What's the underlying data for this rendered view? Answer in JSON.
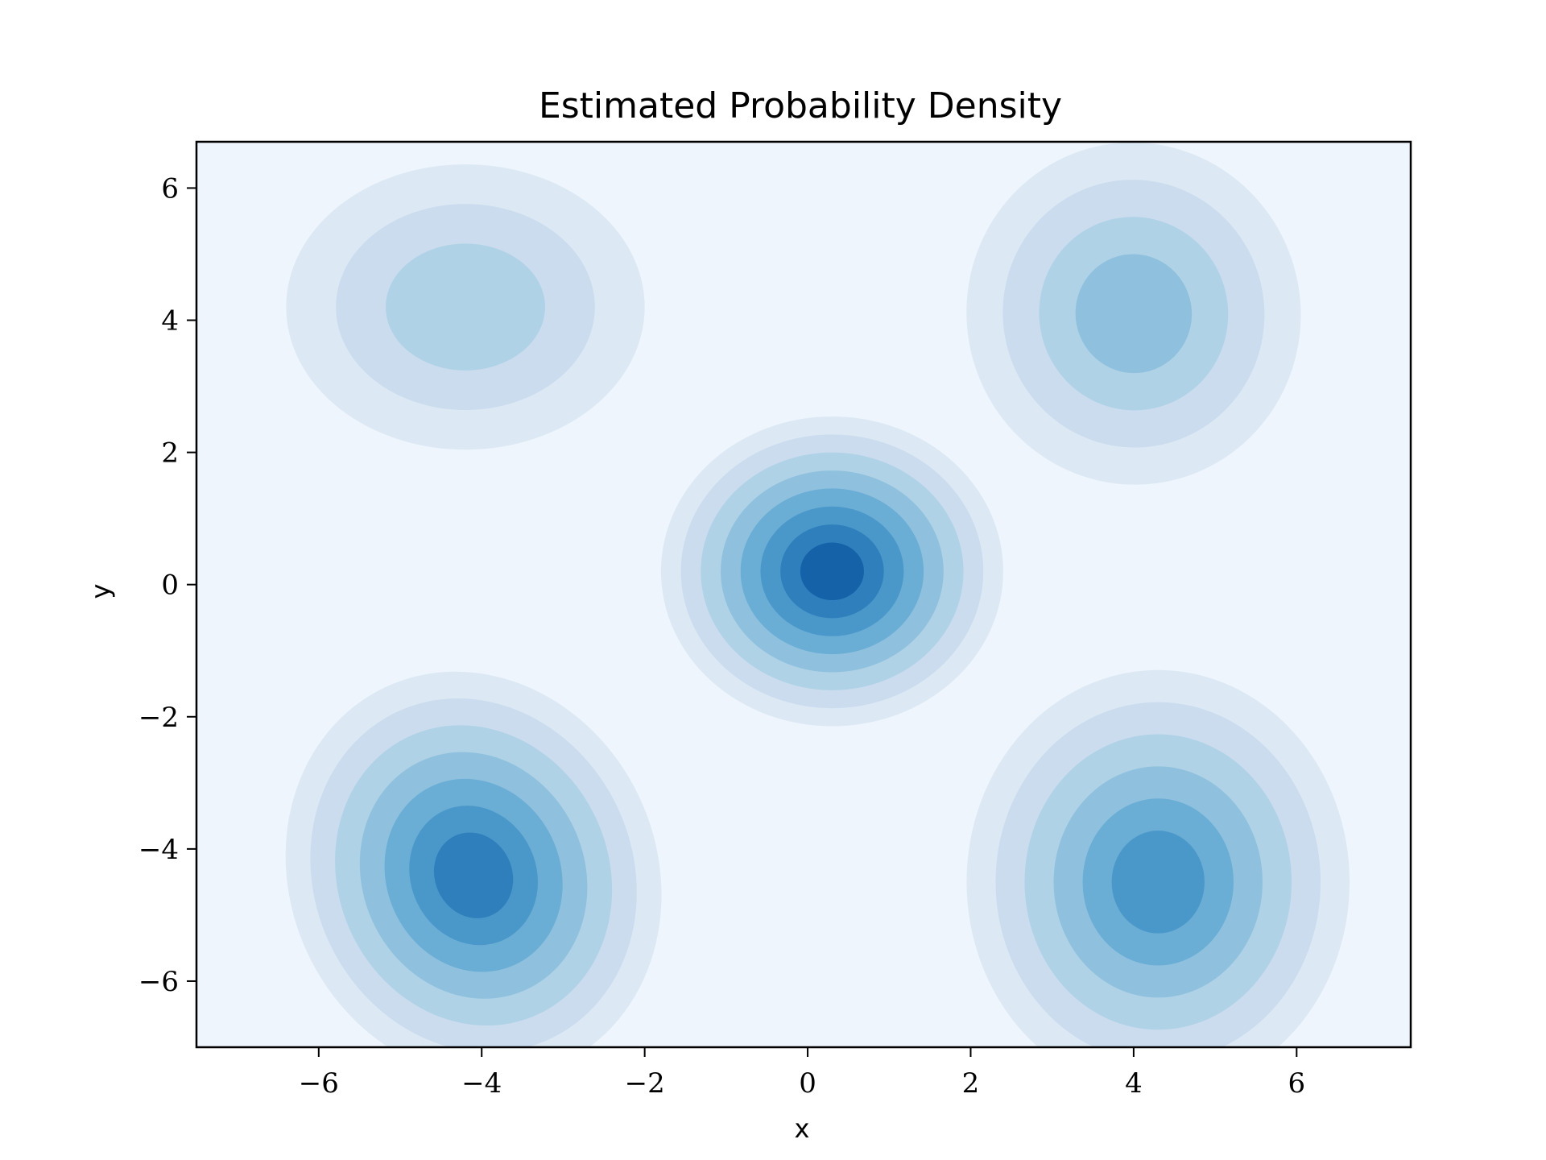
{
  "chart_data": {
    "type": "contour",
    "title": "Estimated Probability Density",
    "xlabel": "x",
    "ylabel": "y",
    "xlim": [
      -7.5,
      7.4
    ],
    "ylim": [
      -7.0,
      6.7
    ],
    "xticks": [
      -6,
      -4,
      -2,
      0,
      2,
      4,
      6
    ],
    "yticks": [
      -6,
      -4,
      -2,
      0,
      2,
      4,
      6
    ],
    "xtick_labels": [
      "−6",
      "−4",
      "−2",
      "0",
      "2",
      "4",
      "6"
    ],
    "ytick_labels": [
      "−6",
      "−4",
      "−2",
      "0",
      "2",
      "4",
      "6"
    ],
    "colormap": "Blues",
    "background_color": "#eef5fc",
    "clusters": [
      {
        "center": [
          -4.2,
          4.2
        ],
        "peak_level": 3
      },
      {
        "center": [
          4.0,
          4.1
        ],
        "peak_level": 4
      },
      {
        "center": [
          0.3,
          0.2
        ],
        "peak_level": 8
      },
      {
        "center": [
          -4.1,
          -4.4
        ],
        "peak_level": 7
      },
      {
        "center": [
          4.3,
          -4.5
        ],
        "peak_level": 6
      }
    ],
    "level_colors": [
      "#eef5fc",
      "#dce9f5",
      "#cbdcee",
      "#afd2e6",
      "#8fc1de",
      "#6aadd5",
      "#4a98c9",
      "#2f7fbc",
      "#1562a9",
      "#084a91",
      "#08306b"
    ]
  }
}
